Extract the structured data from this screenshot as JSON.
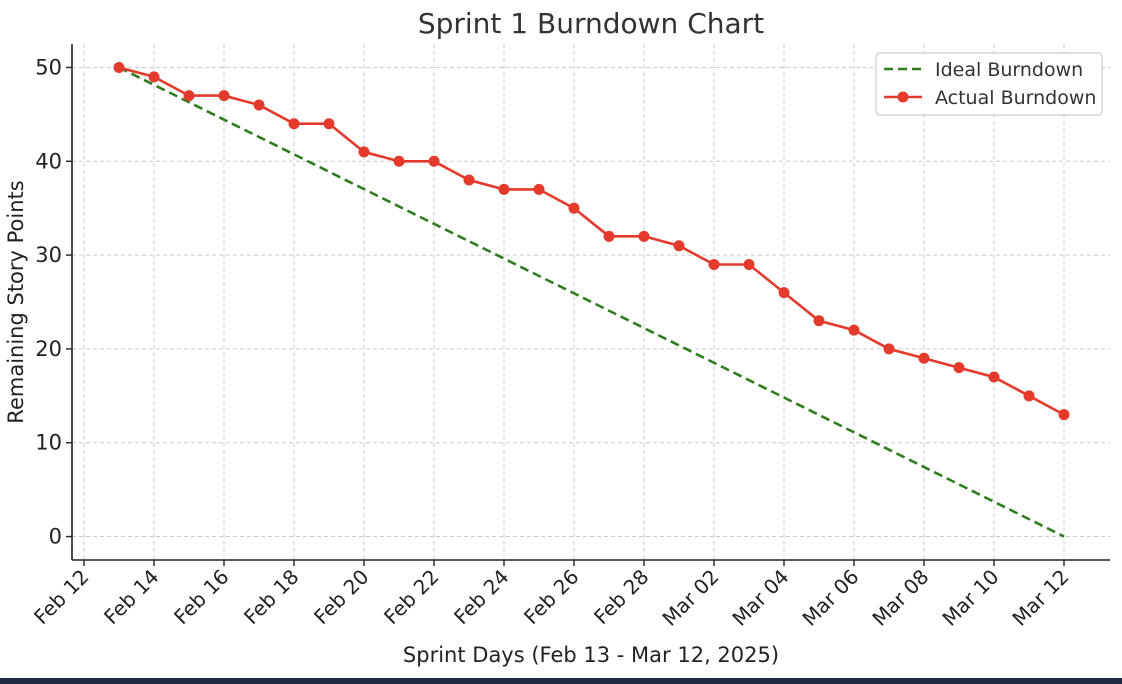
{
  "chart_data": {
    "type": "line",
    "title": "Sprint 1 Burndown Chart",
    "xlabel": "Sprint Days (Feb 13 - Mar 12, 2025)",
    "ylabel": "Remaining Story Points",
    "ylim": [
      -2.5,
      52.5
    ],
    "yticks": [
      0,
      10,
      20,
      30,
      40,
      50
    ],
    "x_ticks": [
      {
        "date": "2025-02-12",
        "label": "Feb 12"
      },
      {
        "date": "2025-02-14",
        "label": "Feb 14"
      },
      {
        "date": "2025-02-16",
        "label": "Feb 16"
      },
      {
        "date": "2025-02-18",
        "label": "Feb 18"
      },
      {
        "date": "2025-02-20",
        "label": "Feb 20"
      },
      {
        "date": "2025-02-22",
        "label": "Feb 22"
      },
      {
        "date": "2025-02-24",
        "label": "Feb 24"
      },
      {
        "date": "2025-02-26",
        "label": "Feb 26"
      },
      {
        "date": "2025-02-28",
        "label": "Feb 28"
      },
      {
        "date": "2025-03-02",
        "label": "Mar 02"
      },
      {
        "date": "2025-03-04",
        "label": "Mar 04"
      },
      {
        "date": "2025-03-06",
        "label": "Mar 06"
      },
      {
        "date": "2025-03-08",
        "label": "Mar 08"
      },
      {
        "date": "2025-03-10",
        "label": "Mar 10"
      },
      {
        "date": "2025-03-12",
        "label": "Mar 12"
      }
    ],
    "grid": true,
    "legend_position": "top-right",
    "series": [
      {
        "name": "Ideal Burndown",
        "style": "dashed",
        "color": "#2e7d1f",
        "x": [
          "2025-02-13",
          "2025-03-12"
        ],
        "values": [
          50,
          0
        ]
      },
      {
        "name": "Actual Burndown",
        "style": "solid-markers",
        "color": "#e33a2b",
        "x": [
          "2025-02-13",
          "2025-02-14",
          "2025-02-15",
          "2025-02-16",
          "2025-02-17",
          "2025-02-18",
          "2025-02-19",
          "2025-02-20",
          "2025-02-21",
          "2025-02-22",
          "2025-02-23",
          "2025-02-24",
          "2025-02-25",
          "2025-02-26",
          "2025-02-27",
          "2025-02-28",
          "2025-03-01",
          "2025-03-02",
          "2025-03-03",
          "2025-03-04",
          "2025-03-05",
          "2025-03-06",
          "2025-03-07",
          "2025-03-08",
          "2025-03-09",
          "2025-03-10",
          "2025-03-11",
          "2025-03-12"
        ],
        "values": [
          50,
          49,
          47,
          47,
          46,
          44,
          44,
          41,
          40,
          40,
          38,
          37,
          37,
          35,
          32,
          32,
          31,
          29,
          29,
          26,
          23,
          22,
          20,
          19,
          18,
          17,
          15,
          13
        ]
      }
    ]
  }
}
